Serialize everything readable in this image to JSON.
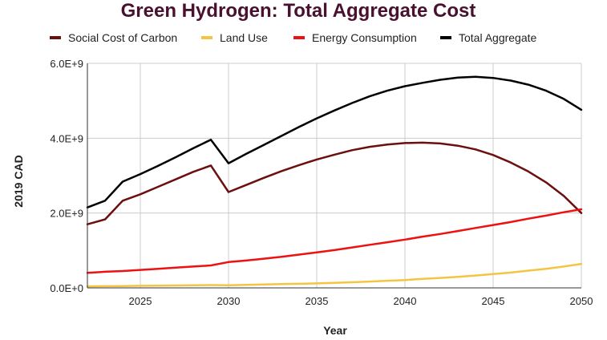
{
  "chart_data": {
    "type": "line",
    "title": "Green Hydrogen: Total Aggregate Cost",
    "title_color": "#4a1030",
    "xlabel": "Year",
    "ylabel": "2019 CAD",
    "xlim": [
      2022,
      2050
    ],
    "ylim": [
      0,
      6000000000
    ],
    "x_ticks": [
      2025,
      2030,
      2035,
      2040,
      2045,
      2050
    ],
    "x_tick_labels": [
      "2025",
      "2030",
      "2035",
      "2040",
      "2045",
      "2050"
    ],
    "y_ticks": [
      0,
      2000000000,
      4000000000,
      6000000000
    ],
    "y_tick_labels": [
      "0.0E+0",
      "2.0E+9",
      "4.0E+9",
      "6.0E+9"
    ],
    "grid": true,
    "legend_position": "top",
    "x": [
      2022,
      2023,
      2024,
      2025,
      2026,
      2027,
      2028,
      2029,
      2030,
      2031,
      2032,
      2033,
      2034,
      2035,
      2036,
      2037,
      2038,
      2039,
      2040,
      2041,
      2042,
      2043,
      2044,
      2045,
      2046,
      2047,
      2048,
      2049,
      2050
    ],
    "series": [
      {
        "name": "Social Cost of Carbon",
        "color": "#6b0f0f",
        "values": [
          1700000000,
          1830000000,
          2330000000,
          2500000000,
          2700000000,
          2900000000,
          3100000000,
          3270000000,
          2560000000,
          2750000000,
          2940000000,
          3120000000,
          3280000000,
          3430000000,
          3560000000,
          3680000000,
          3770000000,
          3830000000,
          3870000000,
          3880000000,
          3860000000,
          3800000000,
          3700000000,
          3550000000,
          3350000000,
          3110000000,
          2820000000,
          2460000000,
          2000000000
        ]
      },
      {
        "name": "Land Use",
        "color": "#f4c542",
        "values": [
          40000000,
          45000000,
          50000000,
          55000000,
          60000000,
          65000000,
          70000000,
          75000000,
          70000000,
          80000000,
          90000000,
          100000000,
          110000000,
          120000000,
          135000000,
          150000000,
          170000000,
          190000000,
          210000000,
          240000000,
          265000000,
          295000000,
          330000000,
          370000000,
          410000000,
          460000000,
          510000000,
          570000000,
          640000000
        ]
      },
      {
        "name": "Energy Consumption",
        "color": "#ee1111",
        "values": [
          400000000,
          430000000,
          450000000,
          480000000,
          510000000,
          540000000,
          570000000,
          600000000,
          690000000,
          730000000,
          780000000,
          830000000,
          890000000,
          950000000,
          1010000000,
          1080000000,
          1150000000,
          1220000000,
          1290000000,
          1370000000,
          1440000000,
          1520000000,
          1600000000,
          1680000000,
          1760000000,
          1850000000,
          1930000000,
          2020000000,
          2100000000
        ]
      },
      {
        "name": "Total Aggregate",
        "color": "#000000",
        "values": [
          2150000000,
          2330000000,
          2840000000,
          3040000000,
          3260000000,
          3490000000,
          3730000000,
          3960000000,
          3330000000,
          3580000000,
          3820000000,
          4060000000,
          4300000000,
          4530000000,
          4740000000,
          4940000000,
          5120000000,
          5270000000,
          5390000000,
          5480000000,
          5560000000,
          5620000000,
          5640000000,
          5610000000,
          5540000000,
          5430000000,
          5270000000,
          5050000000,
          4760000000
        ]
      }
    ]
  }
}
